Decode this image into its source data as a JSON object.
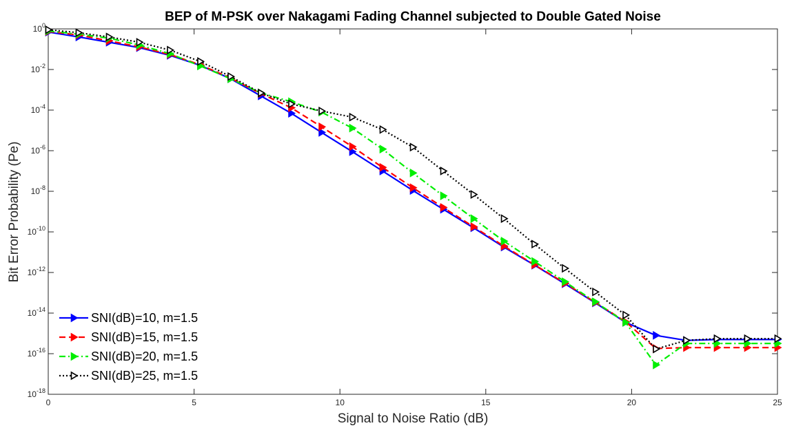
{
  "chart_data": {
    "type": "line",
    "title": "BEP of M-PSK over Nakagami Fading Channel subjected to Double Gated Noise",
    "xlabel": "Signal to Noise Ratio (dB)",
    "ylabel": "Bit Error Probability (Pe)",
    "xlim": [
      0,
      25
    ],
    "ylim": [
      1e-18,
      1
    ],
    "yscale": "log",
    "grid": false,
    "legend_position": "bottom-left",
    "x_ticks": [
      {
        "value": 0,
        "label": "0"
      },
      {
        "value": 5,
        "label": "5"
      },
      {
        "value": 10,
        "label": "10"
      },
      {
        "value": 15,
        "label": "15"
      },
      {
        "value": 20,
        "label": "20"
      },
      {
        "value": 25,
        "label": "25"
      }
    ],
    "y_ticks": [
      {
        "exp": 0,
        "base": "10",
        "sup": "0"
      },
      {
        "exp": -2,
        "base": "10",
        "sup": "-2"
      },
      {
        "exp": -4,
        "base": "10",
        "sup": "-4"
      },
      {
        "exp": -6,
        "base": "10",
        "sup": "-6"
      },
      {
        "exp": -8,
        "base": "10",
        "sup": "-8"
      },
      {
        "exp": -10,
        "base": "10",
        "sup": "-10"
      },
      {
        "exp": -12,
        "base": "10",
        "sup": "-12"
      },
      {
        "exp": -14,
        "base": "10",
        "sup": "-14"
      },
      {
        "exp": -16,
        "base": "10",
        "sup": "-16"
      },
      {
        "exp": -18,
        "base": "10",
        "sup": "-18"
      }
    ],
    "x": [
      0,
      1.04,
      2.08,
      3.12,
      4.17,
      5.21,
      6.25,
      7.29,
      8.33,
      9.37,
      10.42,
      11.46,
      12.5,
      13.54,
      14.58,
      15.62,
      16.67,
      17.71,
      18.75,
      19.79,
      20.83,
      21.87,
      22.92,
      23.96,
      25.0
    ],
    "series": [
      {
        "name": "SNI(dB)=10, m=1.5",
        "color": "#0000ff",
        "dash": "solid",
        "marker_fill": "#0000ff",
        "values": [
          0.7,
          0.4,
          0.22,
          0.12,
          0.05,
          0.016,
          0.0035,
          0.0005,
          7e-05,
          8e-06,
          9e-07,
          1e-07,
          1.1e-08,
          1.3e-09,
          1.6e-10,
          1.8e-11,
          2.3e-12,
          2.8e-13,
          3.2e-14,
          3.5e-15,
          8e-16,
          4.5e-16,
          5e-16,
          5e-16,
          5e-16
        ]
      },
      {
        "name": "SNI(dB)=15, m=1.5",
        "color": "#ff0000",
        "dash": "dashed",
        "marker_fill": "#ff0000",
        "values": [
          0.75,
          0.5,
          0.26,
          0.13,
          0.055,
          0.017,
          0.0038,
          0.00065,
          0.00013,
          1.5e-05,
          1.6e-06,
          1.5e-07,
          1.5e-08,
          1.6e-09,
          1.8e-10,
          2e-11,
          2.4e-12,
          3e-13,
          3.4e-14,
          3.8e-15,
          1.8e-16,
          2e-16,
          2e-16,
          2e-16,
          2e-16
        ]
      },
      {
        "name": "SNI(dB)=20, m=1.5",
        "color": "#00ee00",
        "dash": "dashdot",
        "marker_fill": "#00ee00",
        "values": [
          0.8,
          0.55,
          0.35,
          0.16,
          0.06,
          0.015,
          0.0035,
          0.0007,
          0.00026,
          8e-05,
          1.3e-05,
          1.2e-06,
          8e-08,
          6e-09,
          4.5e-10,
          3.5e-11,
          3.5e-12,
          3.5e-13,
          3.6e-14,
          3.5e-15,
          2.8e-17,
          3.2e-16,
          3.2e-16,
          3.2e-16,
          3.2e-16
        ]
      },
      {
        "name": "SNI(dB)=25, m=1.5",
        "color": "#000000",
        "dash": "dotted",
        "marker_fill": "#ffffff",
        "values": [
          0.9,
          0.65,
          0.4,
          0.22,
          0.09,
          0.025,
          0.0045,
          0.0007,
          0.0002,
          9e-05,
          4.5e-05,
          1.1e-05,
          1.5e-06,
          1e-07,
          7e-09,
          4.5e-10,
          2.5e-11,
          1.6e-12,
          1.1e-13,
          8e-15,
          1.7e-16,
          4.5e-16,
          5.5e-16,
          5.5e-16,
          5.5e-16
        ]
      }
    ]
  }
}
